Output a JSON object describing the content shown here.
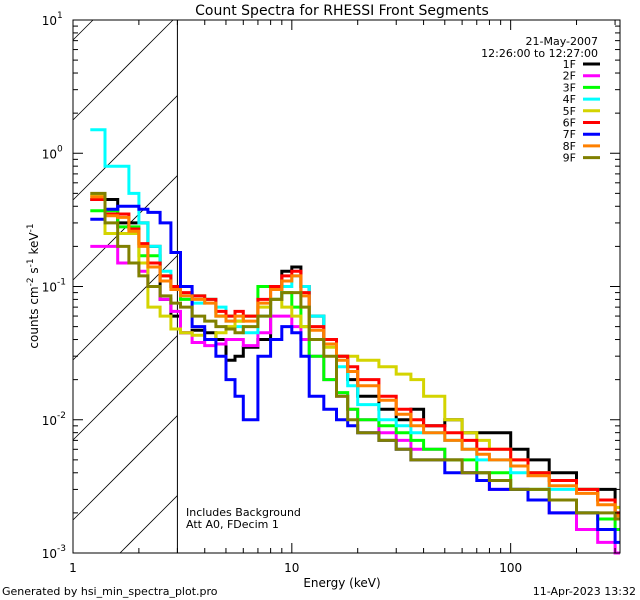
{
  "chart_data": {
    "type": "line",
    "title": "Count Spectra for RHESSI Front Segments",
    "xlabel": "Energy (keV)",
    "ylabel": "counts cm^-2 s^-1 keV^-1",
    "ylabel_parts": [
      "counts cm",
      "-2",
      " s",
      "-1",
      " keV",
      "-1"
    ],
    "xscale": "log",
    "yscale": "log",
    "xlim": [
      1,
      316
    ],
    "ylim": [
      0.001,
      10
    ],
    "xticks": [
      {
        "v": 1,
        "label": "1"
      },
      {
        "v": 10,
        "label": "10"
      },
      {
        "v": 100,
        "label": "100"
      }
    ],
    "yticks": [
      {
        "v": 0.001,
        "base": "10",
        "exp": "-3"
      },
      {
        "v": 0.01,
        "base": "10",
        "exp": "-2"
      },
      {
        "v": 0.1,
        "base": "10",
        "exp": "-1"
      },
      {
        "v": 1,
        "base": "10",
        "exp": "0"
      },
      {
        "v": 10,
        "base": "10",
        "exp": "1"
      }
    ],
    "shaded_region_keV": [
      1,
      3
    ],
    "date": "21-May-2007",
    "time_range": "12:26:00 to 12:27:00",
    "annotations": [
      "Includes Background",
      "Att A0, FDecim 1"
    ],
    "legend_position": "top-right",
    "energy": [
      1.2,
      1.4,
      1.6,
      1.8,
      2.0,
      2.2,
      2.5,
      2.8,
      3.1,
      3.5,
      4,
      4.5,
      5,
      5.5,
      6,
      7,
      8,
      9,
      10,
      11,
      12,
      14,
      16,
      18,
      20,
      25,
      30,
      35,
      40,
      50,
      60,
      70,
      80,
      100,
      120,
      150,
      200,
      250,
      300
    ],
    "series": [
      {
        "name": "1F",
        "color": "#000000",
        "values": [
          0.45,
          0.45,
          0.3,
          0.3,
          0.3,
          0.2,
          0.08,
          0.06,
          0.045,
          0.047,
          0.045,
          0.04,
          0.028,
          0.03,
          0.035,
          0.04,
          0.08,
          0.13,
          0.14,
          0.1,
          0.06,
          0.04,
          0.03,
          0.02,
          0.015,
          0.012,
          0.01,
          0.012,
          0.009,
          0.01,
          0.008,
          0.008,
          0.008,
          0.006,
          0.005,
          0.004,
          0.003,
          0.003,
          0.002
        ]
      },
      {
        "name": "2F",
        "color": "#ff00ff",
        "values": [
          0.2,
          0.2,
          0.15,
          0.15,
          0.13,
          0.1,
          0.08,
          0.065,
          0.045,
          0.038,
          0.036,
          0.037,
          0.04,
          0.04,
          0.036,
          0.045,
          0.06,
          0.06,
          0.05,
          0.04,
          0.03,
          0.02,
          0.015,
          0.012,
          0.01,
          0.008,
          0.007,
          0.006,
          0.006,
          0.005,
          0.004,
          0.004,
          0.003,
          0.003,
          0.0025,
          0.002,
          0.0015,
          0.0012,
          0.001
        ]
      },
      {
        "name": "3F",
        "color": "#00ff00",
        "values": [
          0.37,
          0.37,
          0.28,
          0.28,
          0.17,
          0.17,
          0.12,
          0.1,
          0.08,
          0.085,
          0.08,
          0.06,
          0.06,
          0.055,
          0.06,
          0.1,
          0.1,
          0.09,
          0.07,
          0.05,
          0.03,
          0.02,
          0.016,
          0.012,
          0.01,
          0.009,
          0.008,
          0.007,
          0.006,
          0.005,
          0.005,
          0.004,
          0.004,
          0.003,
          0.003,
          0.0025,
          0.002,
          0.0018,
          0.0015
        ]
      },
      {
        "name": "4F",
        "color": "#00ffff",
        "values": [
          1.5,
          0.8,
          0.8,
          0.5,
          0.3,
          0.2,
          0.13,
          0.1,
          0.085,
          0.075,
          0.08,
          0.07,
          0.055,
          0.05,
          0.045,
          0.06,
          0.08,
          0.1,
          0.12,
          0.1,
          0.06,
          0.04,
          0.025,
          0.018,
          0.013,
          0.01,
          0.009,
          0.008,
          0.008,
          0.007,
          0.006,
          0.005,
          0.005,
          0.004,
          0.004,
          0.003,
          0.003,
          0.0025,
          0.002
        ]
      },
      {
        "name": "5F",
        "color": "#d4d400",
        "values": [
          0.48,
          0.25,
          0.25,
          0.25,
          0.15,
          0.07,
          0.06,
          0.048,
          0.045,
          0.043,
          0.04,
          0.045,
          0.05,
          0.055,
          0.06,
          0.07,
          0.08,
          0.07,
          0.06,
          0.05,
          0.04,
          0.035,
          0.03,
          0.03,
          0.028,
          0.025,
          0.022,
          0.02,
          0.015,
          0.01,
          0.008,
          0.007,
          0.006,
          0.005,
          0.004,
          0.0035,
          0.003,
          0.0025,
          0.0022
        ]
      },
      {
        "name": "6F",
        "color": "#ff0000",
        "values": [
          0.45,
          0.35,
          0.35,
          0.27,
          0.21,
          0.15,
          0.12,
          0.1,
          0.09,
          0.085,
          0.08,
          0.065,
          0.06,
          0.065,
          0.06,
          0.08,
          0.1,
          0.12,
          0.13,
          0.09,
          0.05,
          0.04,
          0.03,
          0.025,
          0.02,
          0.015,
          0.012,
          0.01,
          0.009,
          0.008,
          0.007,
          0.006,
          0.006,
          0.005,
          0.004,
          0.0035,
          0.003,
          0.0025,
          0.002
        ]
      },
      {
        "name": "7F",
        "color": "#0000ff",
        "values": [
          0.32,
          0.38,
          0.4,
          0.4,
          0.38,
          0.36,
          0.3,
          0.18,
          0.1,
          0.05,
          0.04,
          0.03,
          0.02,
          0.015,
          0.01,
          0.03,
          0.04,
          0.05,
          0.045,
          0.03,
          0.015,
          0.012,
          0.01,
          0.009,
          0.008,
          0.007,
          0.006,
          0.005,
          0.005,
          0.004,
          0.004,
          0.0035,
          0.003,
          0.003,
          0.0025,
          0.002,
          0.002,
          0.0015,
          0.0012
        ]
      },
      {
        "name": "8F",
        "color": "#ff8000",
        "values": [
          0.47,
          0.34,
          0.33,
          0.26,
          0.2,
          0.14,
          0.11,
          0.095,
          0.085,
          0.08,
          0.075,
          0.06,
          0.055,
          0.06,
          0.055,
          0.075,
          0.095,
          0.11,
          0.12,
          0.085,
          0.047,
          0.037,
          0.028,
          0.023,
          0.018,
          0.014,
          0.011,
          0.009,
          0.008,
          0.007,
          0.006,
          0.0055,
          0.005,
          0.0045,
          0.0038,
          0.0032,
          0.0028,
          0.0023,
          0.0019
        ]
      },
      {
        "name": "9F",
        "color": "#808000",
        "values": [
          0.5,
          0.3,
          0.2,
          0.15,
          0.12,
          0.1,
          0.085,
          0.075,
          0.07,
          0.06,
          0.055,
          0.05,
          0.048,
          0.045,
          0.05,
          0.06,
          0.08,
          0.09,
          0.09,
          0.07,
          0.04,
          0.03,
          0.015,
          0.01,
          0.008,
          0.007,
          0.006,
          0.005,
          0.005,
          0.005,
          0.004,
          0.004,
          0.0035,
          0.003,
          0.003,
          0.0025,
          0.002,
          0.002,
          0.0018
        ]
      }
    ]
  },
  "footer": {
    "generated_by": "Generated by hsi_min_spectra_plot.pro",
    "timestamp": "11-Apr-2023 13:32"
  }
}
